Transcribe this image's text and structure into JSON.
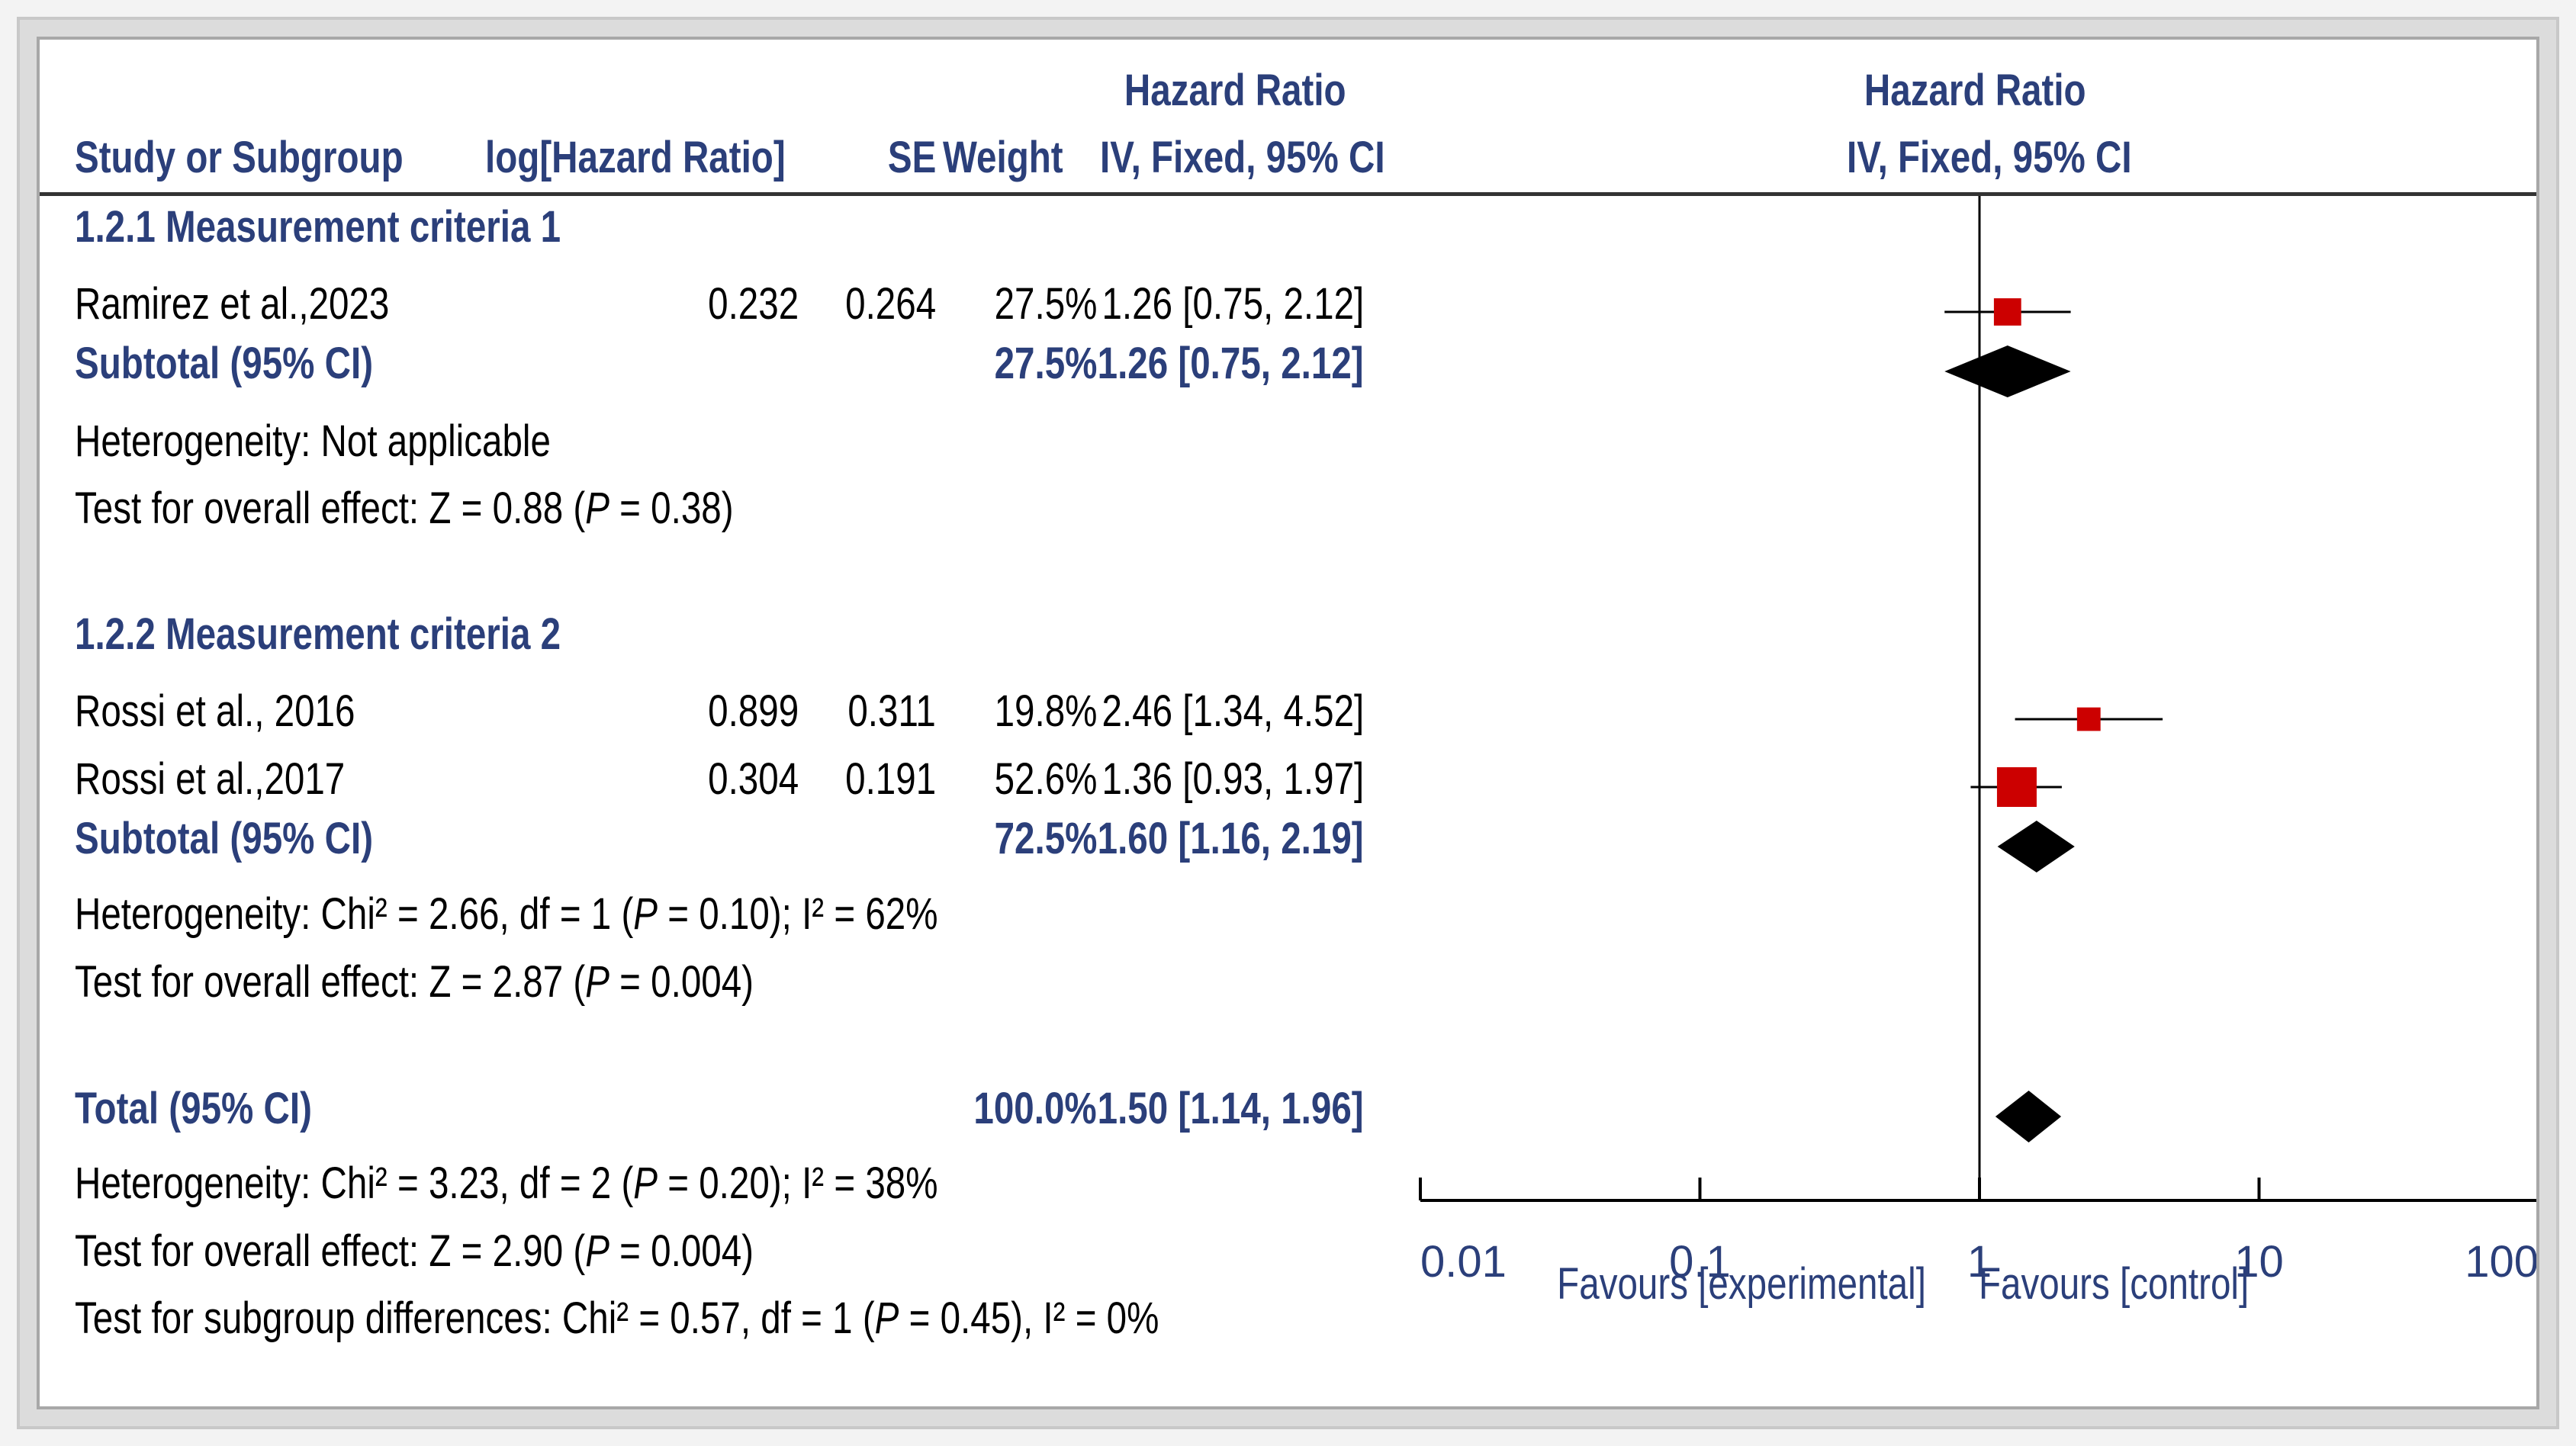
{
  "header": {
    "col_study": "Study or Subgroup",
    "col_log": "log[Hazard Ratio]",
    "col_se": "SE",
    "col_weight": "Weight",
    "col_hr_line1": "Hazard Ratio",
    "col_hr_line2": "IV, Fixed, 95% CI",
    "plot_line1": "Hazard Ratio",
    "plot_line2": "IV, Fixed, 95% CI"
  },
  "subgroups": [
    {
      "title": "1.2.1 Measurement criteria 1",
      "studies": [
        {
          "name": "Ramirez et al.,2023",
          "log_hr": "0.232",
          "se": "0.264",
          "weight": "27.5%",
          "hr_ci": "1.26 [0.75, 2.12]"
        }
      ],
      "subtotal": {
        "label": "Subtotal (95% CI)",
        "weight": "27.5%",
        "hr_ci": "1.26 [0.75, 2.12]"
      },
      "heterogeneity": "Heterogeneity: Not applicable",
      "overall_prefix": "Test for overall effect: Z = 0.88 (",
      "overall_p": "P",
      "overall_suffix": " = 0.38)"
    },
    {
      "title": "1.2.2 Measurement criteria 2",
      "studies": [
        {
          "name": "Rossi et al., 2016",
          "log_hr": "0.899",
          "se": "0.311",
          "weight": "19.8%",
          "hr_ci": "2.46 [1.34, 4.52]"
        },
        {
          "name": "Rossi et al.,2017",
          "log_hr": "0.304",
          "se": "0.191",
          "weight": "52.6%",
          "hr_ci": "1.36 [0.93, 1.97]"
        }
      ],
      "subtotal": {
        "label": "Subtotal (95% CI)",
        "weight": "72.5%",
        "hr_ci": "1.60 [1.16, 2.19]"
      },
      "het_prefix": "Heterogeneity: Chi² = 2.66, df = 1 (",
      "het_p": "P",
      "het_suffix": " = 0.10); I² = 62%",
      "overall_prefix": "Test for overall effect: Z = 2.87 (",
      "overall_p": "P",
      "overall_suffix": " = 0.004)"
    }
  ],
  "total": {
    "label": "Total (95% CI)",
    "weight": "100.0%",
    "hr_ci": "1.50 [1.14, 1.96]",
    "het_prefix": "Heterogeneity: Chi² = 3.23, df = 2 (",
    "het_p": "P",
    "het_suffix": " = 0.20); I² = 38%",
    "overall_prefix": "Test for overall effect: Z = 2.90 (",
    "overall_p": "P",
    "overall_suffix": " = 0.004)",
    "subgroup_prefix": "Test for subgroup differences: Chi² = 0.57, df = 1 (",
    "subgroup_p": "P",
    "subgroup_suffix": " = 0.45), I² = 0%"
  },
  "axis": {
    "favours_left": "Favours [experimental]",
    "favours_right": "Favours [control]"
  },
  "colors": {
    "header_text": "#2b3f7a",
    "study_marker": "#cc0000",
    "diamond": "#000000"
  },
  "chart_data": {
    "type": "forest",
    "title": "Hazard Ratio IV, Fixed, 95% CI",
    "xscale": "log",
    "xlim": [
      0.01,
      100
    ],
    "xticks": [
      0.01,
      0.1,
      1,
      10,
      100
    ],
    "xtick_labels": [
      "0.01",
      "0.1",
      "1",
      "10",
      "100"
    ],
    "reference_line": 1,
    "studies": [
      {
        "name": "Ramirez et al.,2023",
        "hr": 1.26,
        "lo": 0.75,
        "hi": 2.12,
        "weight": 27.5
      },
      {
        "name": "Rossi et al., 2016",
        "hr": 2.46,
        "lo": 1.34,
        "hi": 4.52,
        "weight": 19.8
      },
      {
        "name": "Rossi et al.,2017",
        "hr": 1.36,
        "lo": 0.93,
        "hi": 1.97,
        "weight": 52.6
      }
    ],
    "summaries": [
      {
        "name": "Subtotal 1.2.1",
        "hr": 1.26,
        "lo": 0.75,
        "hi": 2.12
      },
      {
        "name": "Subtotal 1.2.2",
        "hr": 1.6,
        "lo": 1.16,
        "hi": 2.19
      },
      {
        "name": "Total",
        "hr": 1.5,
        "lo": 1.14,
        "hi": 1.96
      }
    ]
  }
}
